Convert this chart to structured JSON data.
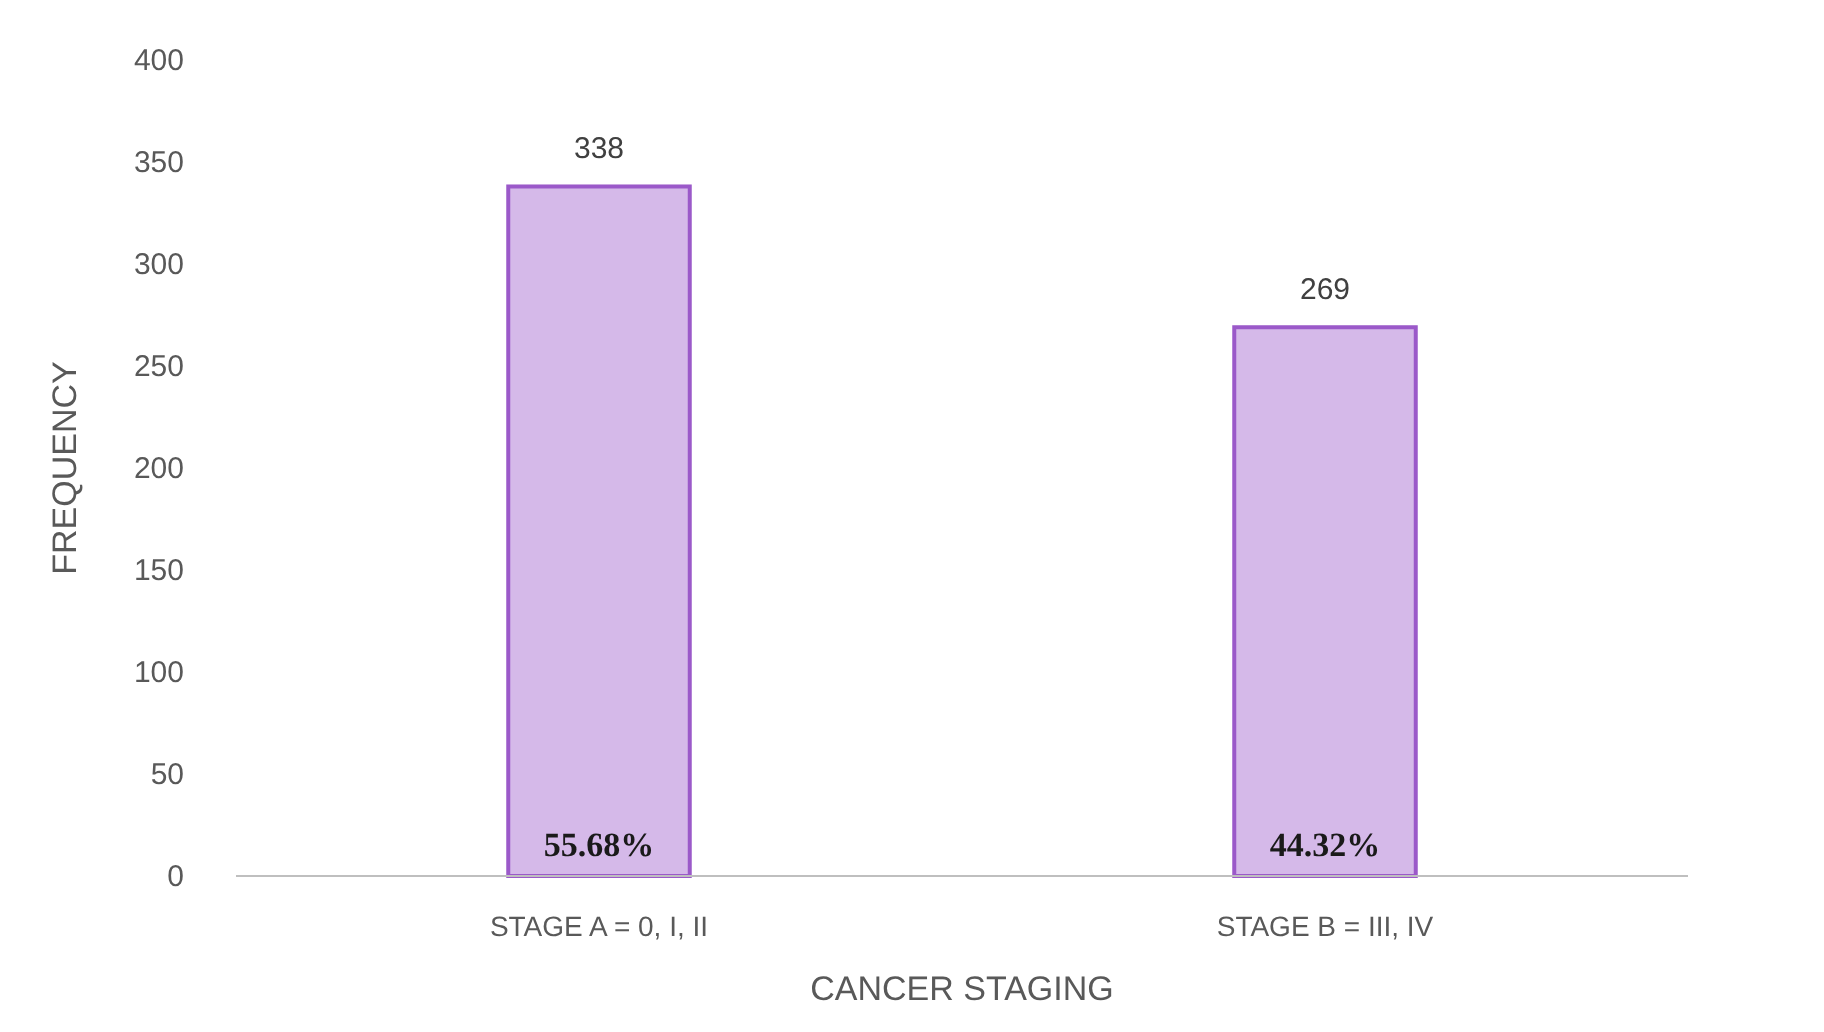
{
  "chart_data": {
    "type": "bar",
    "xlabel": "CANCER STAGING",
    "ylabel": "FREQUENCY",
    "categories": [
      "STAGE A = 0, I, II",
      "STAGE B = III, IV"
    ],
    "values": [
      338,
      269
    ],
    "color": "#d5b9e9",
    "ylim": [
      0,
      400
    ],
    "yticks": [
      0,
      50,
      100,
      150,
      200,
      250,
      300,
      350,
      400
    ],
    "grid": false,
    "data_labels": true,
    "annotations": [
      "55.68%",
      "44.32%"
    ]
  }
}
